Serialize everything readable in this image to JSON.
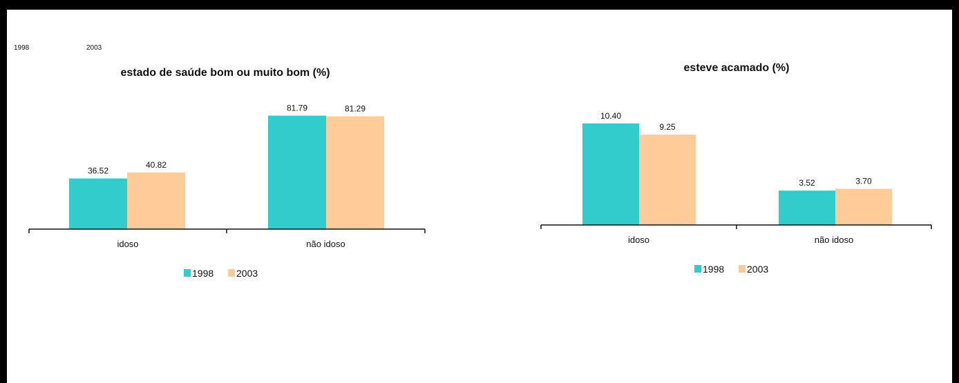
{
  "header": {
    "years": [
      "1998",
      "2003"
    ]
  },
  "colors": {
    "series_1998": "#33cccc",
    "series_2003": "#ffcc99",
    "axis": "#111111"
  },
  "chart_data": [
    {
      "type": "bar",
      "title": "estado de saúde bom ou muito bom (%)",
      "categories": [
        "idoso",
        "não idoso"
      ],
      "series": [
        {
          "name": "1998",
          "values": [
            36.52,
            81.79
          ],
          "labels": [
            "36.52",
            "81.79"
          ]
        },
        {
          "name": "2003",
          "values": [
            40.82,
            81.29
          ],
          "labels": [
            "40.82",
            "81.29"
          ]
        }
      ],
      "ylim": [
        0,
        100
      ],
      "grid": false,
      "legend": "bottom"
    },
    {
      "type": "bar",
      "title": "esteve acamado (%)",
      "categories": [
        "idoso",
        "não idoso"
      ],
      "series": [
        {
          "name": "1998",
          "values": [
            10.4,
            3.52
          ],
          "labels": [
            "10.40",
            "3.52"
          ]
        },
        {
          "name": "2003",
          "values": [
            9.25,
            3.7
          ],
          "labels": [
            "9.25",
            "3.70"
          ]
        }
      ],
      "ylim": [
        0,
        11.8
      ],
      "grid": false,
      "legend": "bottom"
    }
  ]
}
